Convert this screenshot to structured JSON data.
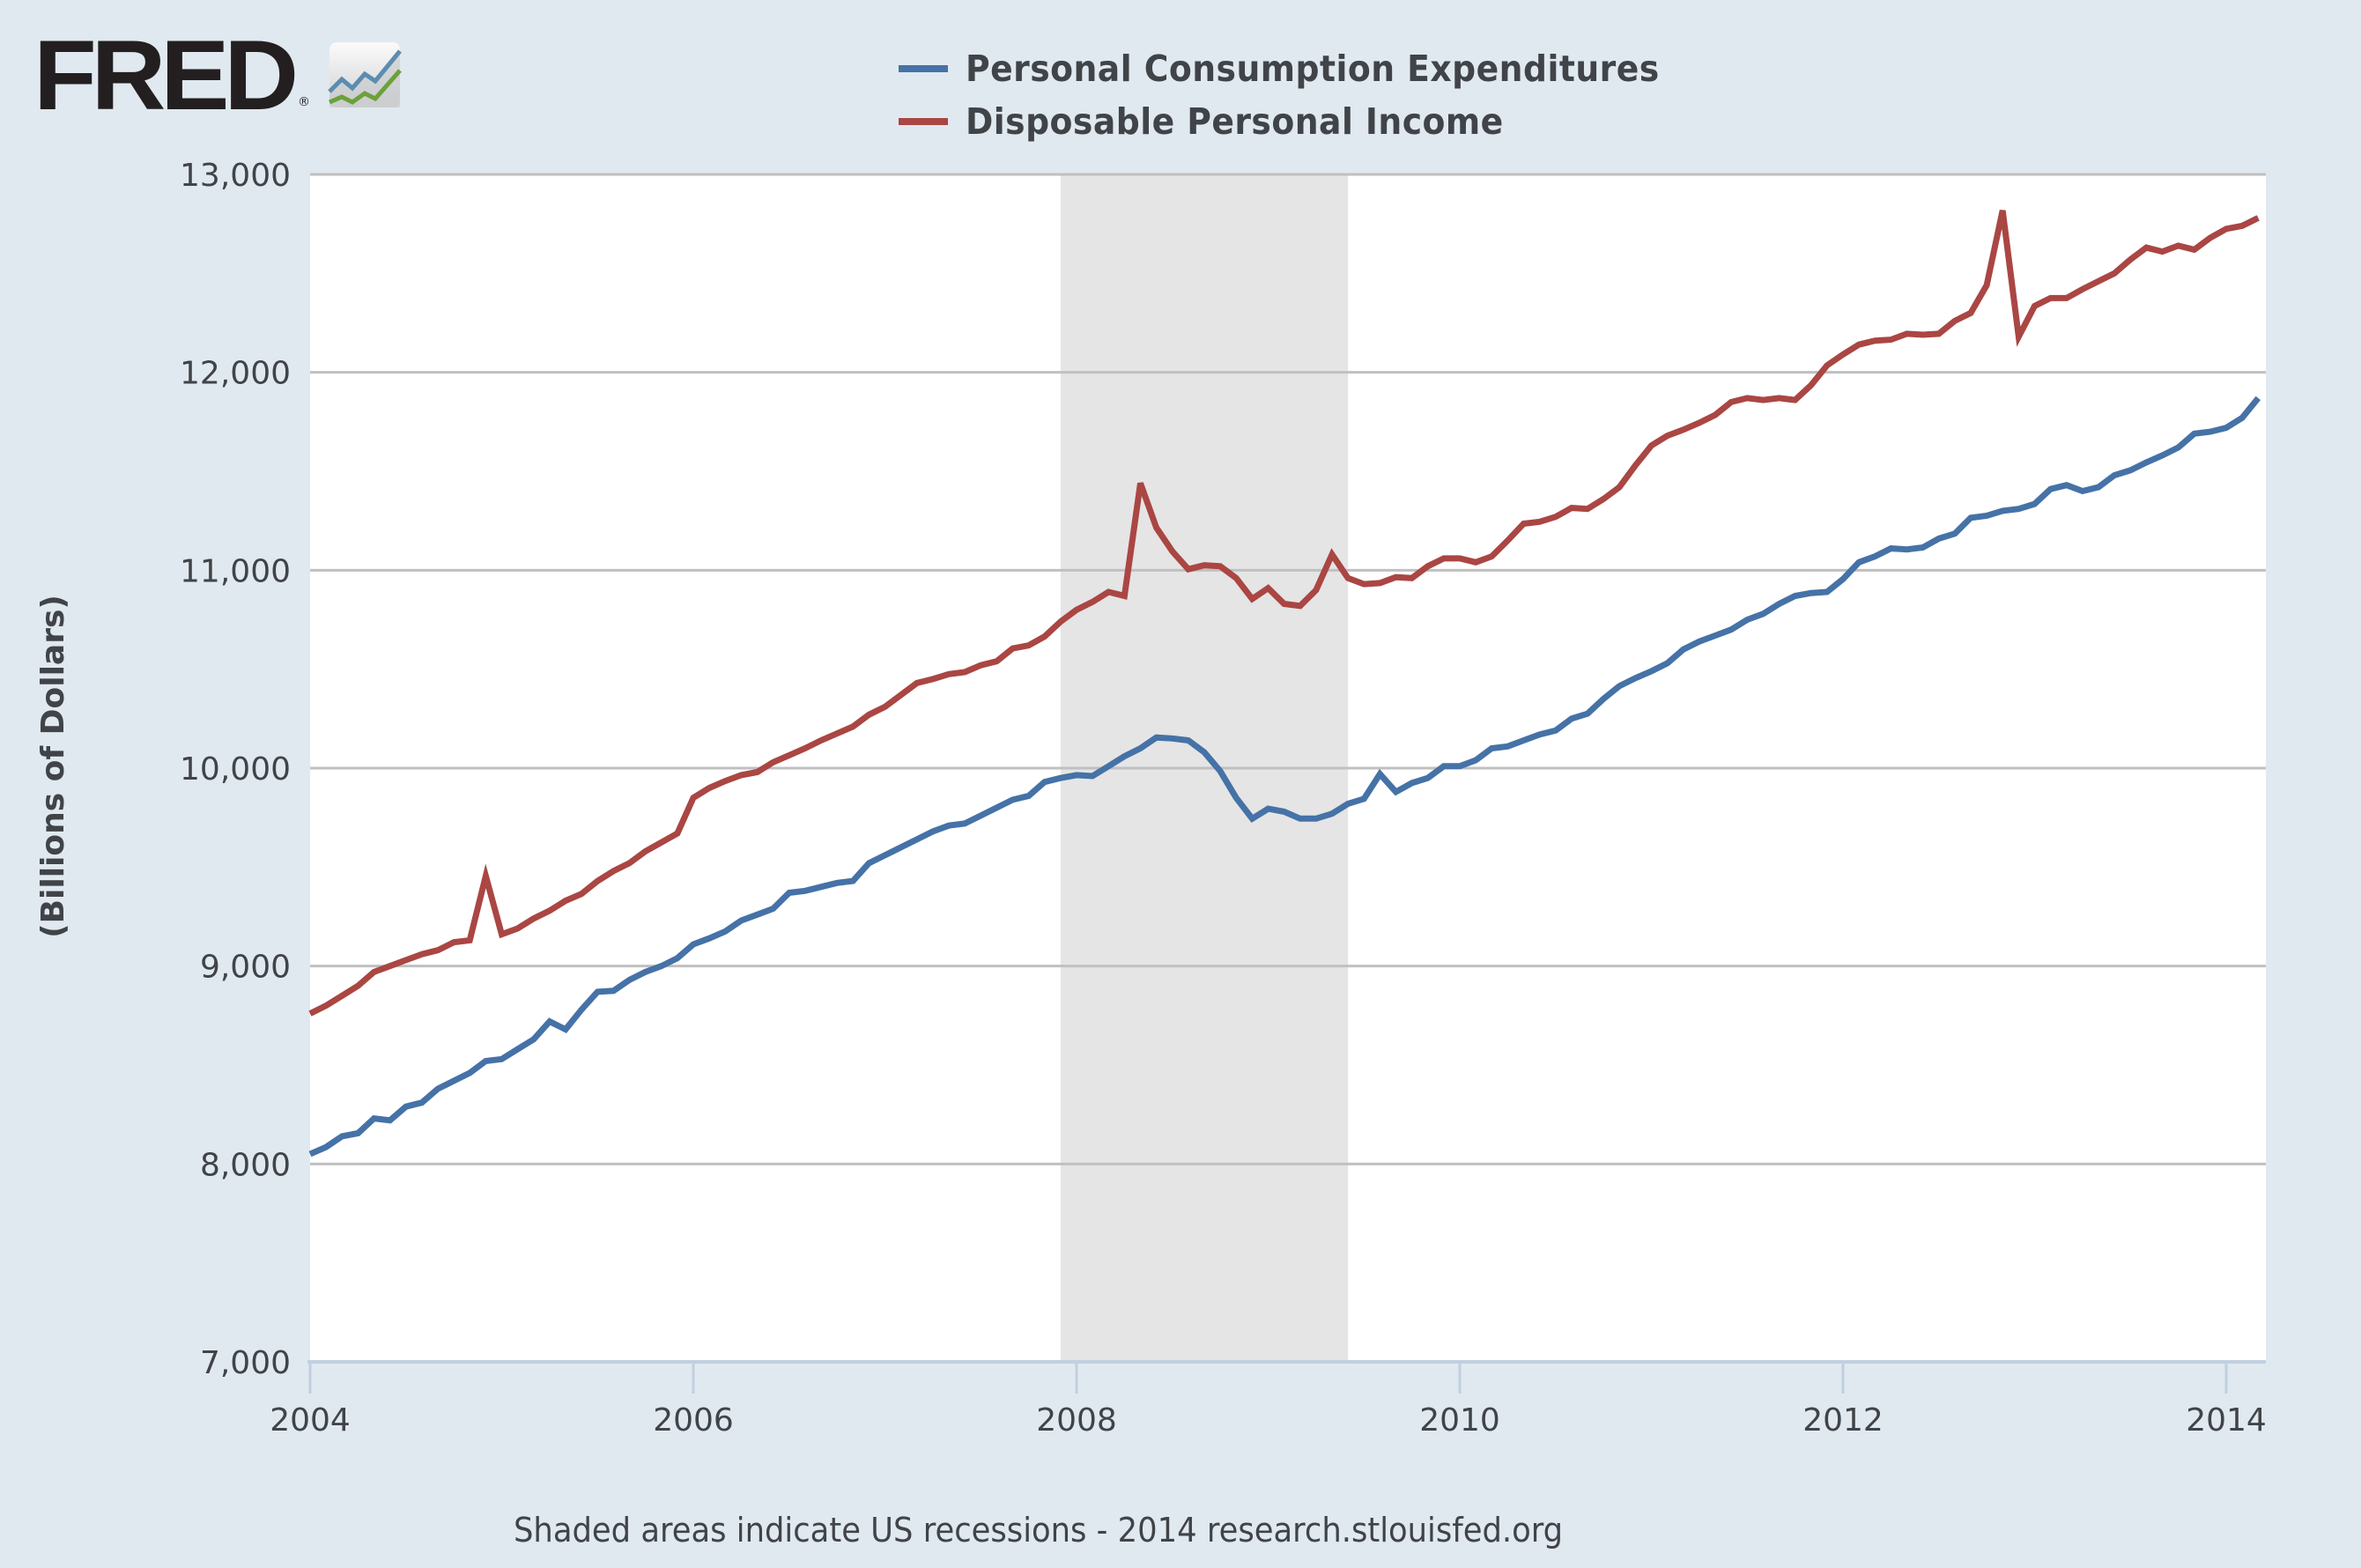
{
  "branding": {
    "logo_text": "FRED",
    "registered_mark": "®",
    "logo_icon": "line-chart-icon"
  },
  "footer": {
    "text": "Shaded areas indicate US recessions - 2014 research.stlouisfed.org"
  },
  "chart_data": {
    "type": "line",
    "title": "",
    "xlabel": "",
    "ylabel": "(Billions of Dollars)",
    "xlim": [
      2004.0,
      2014.1667
    ],
    "ylim": [
      7000,
      13000
    ],
    "grid": true,
    "legend_position": "top-center",
    "x_ticks": [
      {
        "value": 2004,
        "label": "2004"
      },
      {
        "value": 2006,
        "label": "2006"
      },
      {
        "value": 2008,
        "label": "2008"
      },
      {
        "value": 2010,
        "label": "2010"
      },
      {
        "value": 2012,
        "label": "2012"
      },
      {
        "value": 2014,
        "label": "2014"
      }
    ],
    "y_ticks": [
      {
        "value": 7000,
        "label": "7,000"
      },
      {
        "value": 8000,
        "label": "8,000"
      },
      {
        "value": 9000,
        "label": "9,000"
      },
      {
        "value": 10000,
        "label": "10,000"
      },
      {
        "value": 11000,
        "label": "11,000"
      },
      {
        "value": 12000,
        "label": "12,000"
      },
      {
        "value": 13000,
        "label": "13,000"
      }
    ],
    "recessions": [
      {
        "start": 2007.9167,
        "end": 2009.4167,
        "label": "Dec 2007 - Jun 2009"
      }
    ],
    "x_start": "2004-01",
    "frequency": "monthly",
    "series": [
      {
        "name": "Personal Consumption Expenditures",
        "color": "#4572a7",
        "values": [
          8050,
          8085,
          8140,
          8155,
          8230,
          8220,
          8290,
          8310,
          8380,
          8420,
          8460,
          8520,
          8530,
          8580,
          8630,
          8720,
          8680,
          8780,
          8870,
          8875,
          8930,
          8970,
          9000,
          9040,
          9110,
          9140,
          9175,
          9230,
          9260,
          9290,
          9370,
          9380,
          9400,
          9420,
          9430,
          9520,
          9560,
          9600,
          9640,
          9680,
          9710,
          9720,
          9760,
          9800,
          9840,
          9860,
          9930,
          9950,
          9965,
          9960,
          10010,
          10060,
          10100,
          10155,
          10150,
          10140,
          10080,
          9985,
          9850,
          9745,
          9795,
          9780,
          9745,
          9745,
          9770,
          9820,
          9845,
          9970,
          9880,
          9925,
          9950,
          10010,
          10010,
          10040,
          10100,
          10110,
          10140,
          10170,
          10190,
          10250,
          10275,
          10350,
          10415,
          10455,
          10490,
          10530,
          10600,
          10640,
          10670,
          10700,
          10750,
          10780,
          10830,
          10870,
          10885,
          10890,
          10955,
          11040,
          11070,
          11110,
          11105,
          11115,
          11160,
          11185,
          11265,
          11275,
          11300,
          11310,
          11335,
          11410,
          11430,
          11400,
          11420,
          11480,
          11505,
          11545,
          11580,
          11620,
          11690,
          11700,
          11720,
          11770,
          11870
        ]
      },
      {
        "name": "Disposable Personal Income",
        "color": "#aa4643",
        "values": [
          8760,
          8800,
          8850,
          8900,
          8970,
          9000,
          9030,
          9060,
          9080,
          9120,
          9130,
          9455,
          9160,
          9190,
          9240,
          9280,
          9330,
          9365,
          9430,
          9480,
          9520,
          9580,
          9625,
          9670,
          9850,
          9900,
          9935,
          9965,
          9980,
          10030,
          10065,
          10100,
          10140,
          10175,
          10210,
          10270,
          10310,
          10370,
          10430,
          10450,
          10475,
          10485,
          10520,
          10540,
          10605,
          10620,
          10665,
          10740,
          10800,
          10840,
          10890,
          10870,
          11440,
          11215,
          11095,
          11005,
          11025,
          11020,
          10960,
          10855,
          10910,
          10830,
          10820,
          10900,
          11080,
          10960,
          10930,
          10935,
          10965,
          10960,
          11020,
          11060,
          11060,
          11040,
          11070,
          11150,
          11235,
          11245,
          11270,
          11315,
          11310,
          11360,
          11420,
          11530,
          11630,
          11680,
          11710,
          11745,
          11785,
          11850,
          11870,
          11860,
          11870,
          11860,
          11935,
          12035,
          12090,
          12140,
          12160,
          12165,
          12195,
          12190,
          12195,
          12260,
          12300,
          12440,
          12818,
          12180,
          12335,
          12375,
          12375,
          12420,
          12460,
          12500,
          12570,
          12630,
          12610,
          12640,
          12620,
          12680,
          12725,
          12740,
          12780
        ]
      }
    ]
  }
}
